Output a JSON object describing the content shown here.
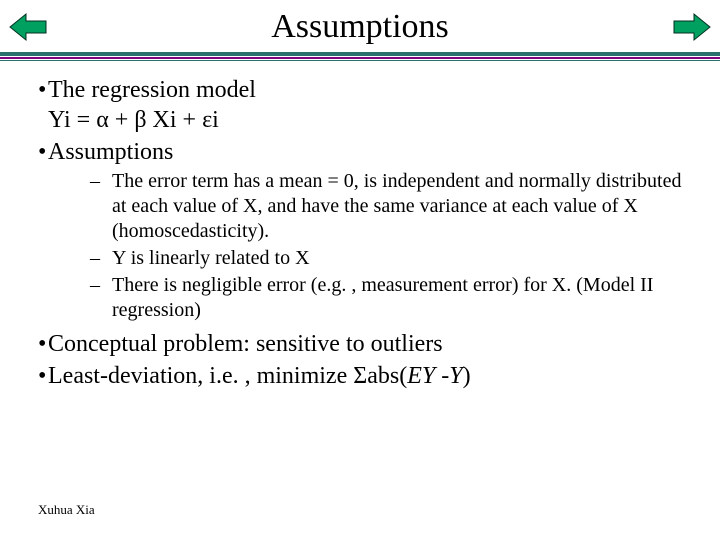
{
  "nav": {
    "prev_icon": "prev-arrow-icon",
    "next_icon": "next-arrow-icon",
    "arrow_fill": "#00a060",
    "arrow_stroke": "#003020"
  },
  "title": "Assumptions",
  "rules": {
    "color1": "#2a6e6e",
    "color2": "#800080"
  },
  "bullets": {
    "l1": [
      {
        "text": "The regression model",
        "eq": "Yi = α + β Xi + εi"
      },
      {
        "text": "Assumptions"
      }
    ],
    "l2": [
      "The error term has a mean = 0, is independent and normally distributed at each value of X, and have the same variance at each value of X (homoscedasticity).",
      "Y is linearly related to X",
      "There is negligible error (e.g. , measurement error) for X. (Model II regression)"
    ],
    "l1b": [
      "Conceptual problem: sensitive to outliers",
      "Least-deviation, i.e. , minimize Σabs(EY -Y)"
    ]
  },
  "footer": "Xuhua Xia"
}
